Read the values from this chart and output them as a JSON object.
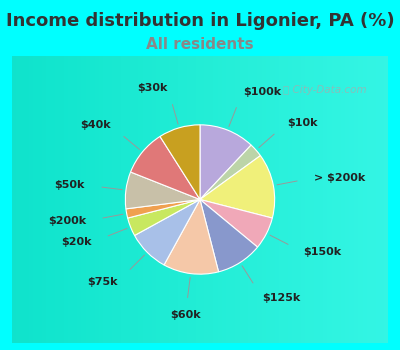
{
  "title": "Income distribution in Ligonier, PA (%)",
  "subtitle": "All residents",
  "title_fontsize": 13,
  "subtitle_fontsize": 11,
  "title_color": "#333333",
  "subtitle_color": "#888888",
  "bg_outer": "#00ffff",
  "bg_inner_color": "#d8f0e0",
  "labels": [
    "$100k",
    "$10k",
    "> $200k",
    "$150k",
    "$125k",
    "$60k",
    "$75k",
    "$20k",
    "$200k",
    "$50k",
    "$40k",
    "$30k"
  ],
  "values": [
    12,
    3,
    14,
    7,
    10,
    12,
    9,
    4,
    2,
    8,
    10,
    9
  ],
  "colors": [
    "#b8a8dc",
    "#bcd4a8",
    "#f0f07a",
    "#f0a8b8",
    "#8898cc",
    "#f5c8a8",
    "#a8c0e8",
    "#c8e860",
    "#f0a050",
    "#c8c0a8",
    "#e07878",
    "#c8a020"
  ],
  "label_fontsize": 8,
  "watermark": "City-Data.com",
  "startangle": 90
}
